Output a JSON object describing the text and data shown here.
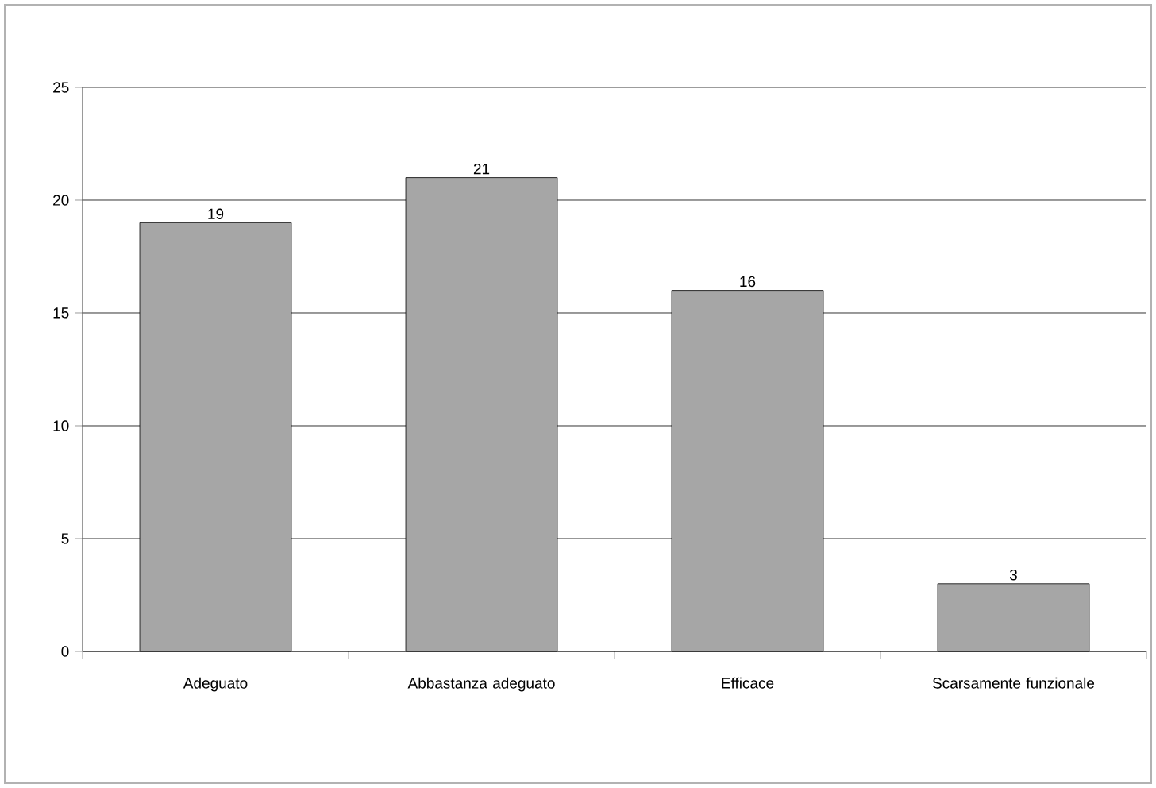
{
  "chart_data": {
    "type": "bar",
    "categories": [
      "Adeguato",
      "Abbastanza adeguato",
      "Efficace",
      "Scarsamente funzionale"
    ],
    "values": [
      19,
      21,
      16,
      3
    ],
    "color": "#a6a6a6",
    "ylim": [
      0,
      25
    ],
    "yticks": [
      0,
      5,
      10,
      15,
      20,
      25
    ],
    "grid": "y",
    "data_labels": true
  }
}
